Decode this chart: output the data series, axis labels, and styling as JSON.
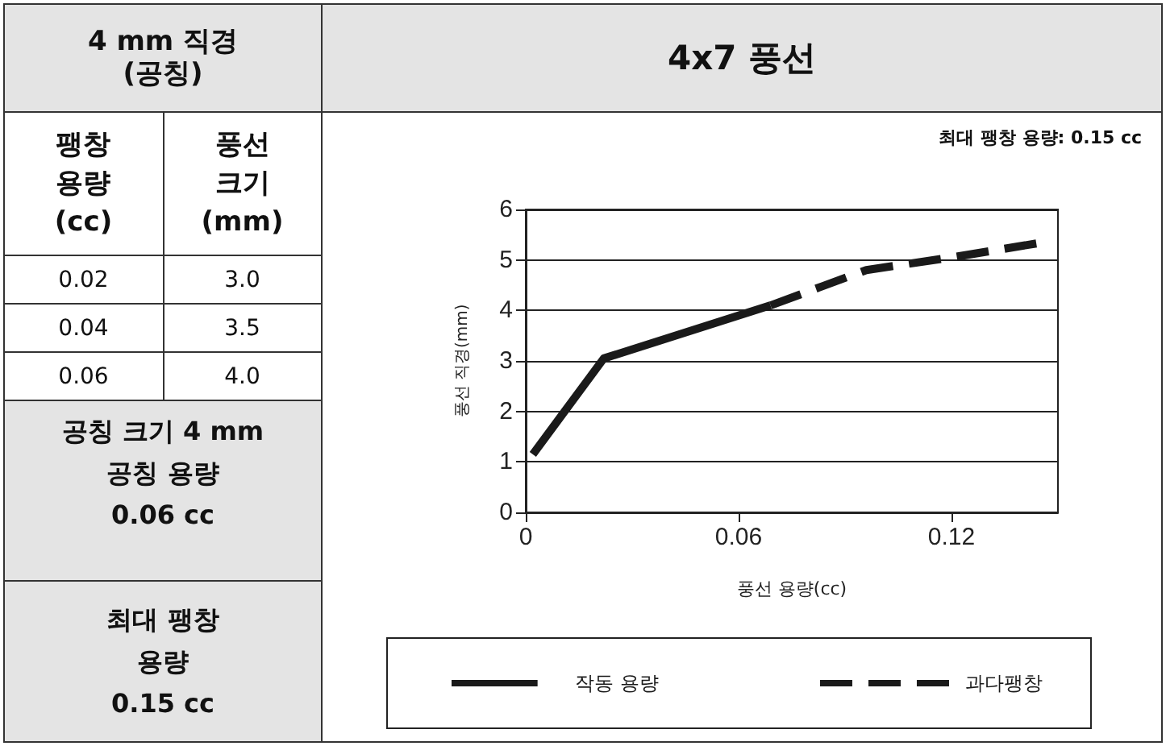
{
  "chart_data": {
    "type": "line",
    "title": "4x7 풍선",
    "subtitle": "최대 팽창 용량: 0.15 cc",
    "xlabel": "풍선 용량(cc)",
    "ylabel": "풍선 직경(mm)",
    "annotations": [
      "4 mm 직경\n(공칭)",
      "팽창\n용량\n(cc)",
      "풍선\n크기\n(mm)",
      "0.02",
      "3.0",
      "0.04",
      "3.5",
      "0.06",
      "4.0",
      "공칭 크기 4 mm\n공칭 용량\n0.06 cc",
      "최대 팽창\n용량\n0.15 cc"
    ],
    "series": [
      {
        "name": "작동 용량",
        "color": "#1a1a1a",
        "line_style": "solid",
        "x": [
          0.002,
          0.022,
          0.069
        ],
        "values": [
          1.15,
          3.05,
          4.1
        ]
      },
      {
        "name": "과다팽창",
        "color": "#1a1a1a",
        "line_style": "dashed",
        "x": [
          0.069,
          0.096,
          0.12,
          0.146
        ],
        "values": [
          4.1,
          4.8,
          5.05,
          5.35
        ]
      }
    ],
    "xlim": [
      0,
      0.15
    ],
    "xticks": [
      0,
      0.06,
      0.12
    ],
    "ylim": [
      0,
      6
    ],
    "yticks": [
      0,
      1,
      2,
      3,
      4,
      5,
      6
    ],
    "grid": "y",
    "legend": "bottom",
    "marker": "none"
  }
}
